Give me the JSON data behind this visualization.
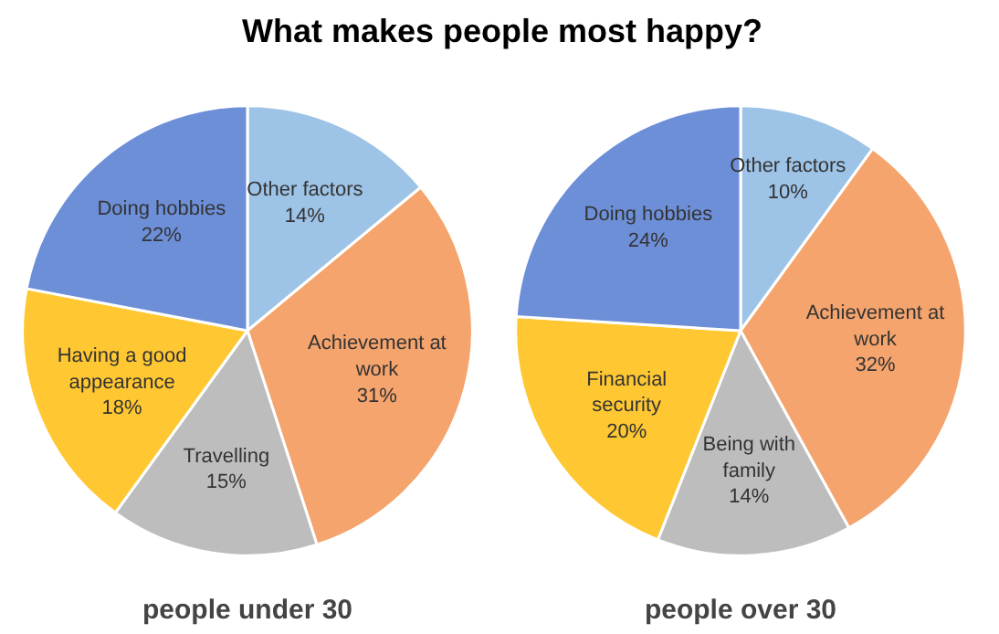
{
  "chart_data": [
    {
      "type": "pie",
      "title": "What makes people most happy?",
      "xlabel": "people under 30",
      "categories": [
        "Other factors",
        "Achievement at work",
        "Travelling",
        "Having a good appearance",
        "Doing hobbies"
      ],
      "values": [
        14,
        31,
        15,
        18,
        22
      ],
      "value_labels": [
        "14%",
        "31%",
        "15%",
        "18%",
        "22%"
      ],
      "colors": [
        "#9dc3e6",
        "#f4a46c",
        "#bdbdbd",
        "#ffc832",
        "#6d8fd8"
      ]
    },
    {
      "type": "pie",
      "xlabel": "people over 30",
      "categories": [
        "Other factors",
        "Achievement at work",
        "Being with family",
        "Financial security",
        "Doing hobbies"
      ],
      "values": [
        10,
        32,
        14,
        20,
        24
      ],
      "value_labels": [
        "10%",
        "32%",
        "14%",
        "20%",
        "24%"
      ],
      "colors": [
        "#9dc3e6",
        "#f4a46c",
        "#bdbdbd",
        "#ffc832",
        "#6d8fd8"
      ]
    }
  ]
}
